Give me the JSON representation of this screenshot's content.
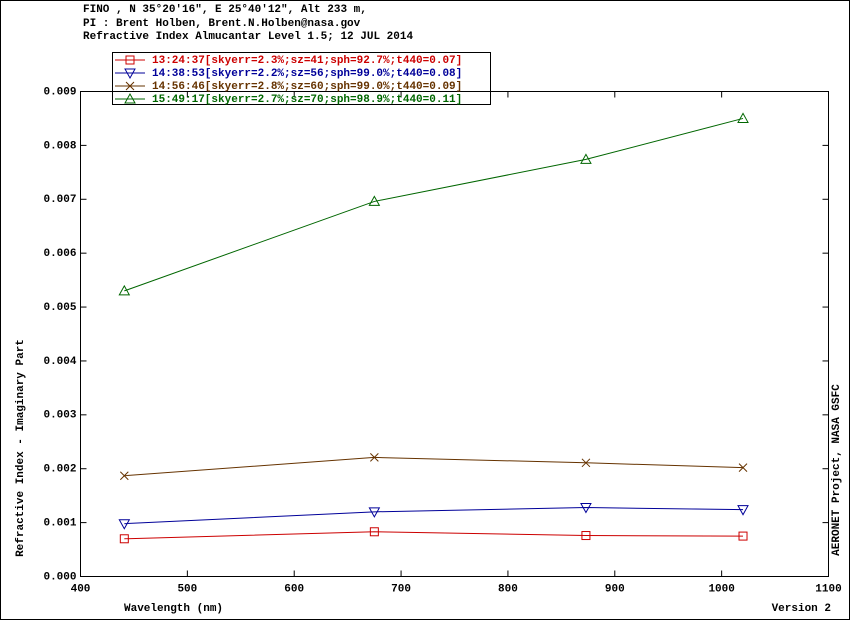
{
  "chart_data": {
    "type": "line",
    "title_lines": [
      "FINO , N 35°20'16\", E 25°40'12\", Alt 233 m,",
      "PI : Brent Holben, Brent.N.Holben@nasa.gov",
      "Refractive Index Almucantar Level 1.5; 12 JUL 2014"
    ],
    "y_label": "Refractive Index - Imaginary Part",
    "x_label": "Wavelength (nm)",
    "right_label": "AERONET Project, NASA GSFC",
    "version": "Version 2",
    "x": [
      441,
      675,
      873,
      1020
    ],
    "series": [
      {
        "name": "13:24:37[skyerr=2.3%;sz=41;sph=92.7%;t440=0.07]",
        "color": "#cc0000",
        "marker": "square",
        "values": [
          0.0007,
          0.00083,
          0.00076,
          0.00075
        ]
      },
      {
        "name": "14:38:53[skyerr=2.2%;sz=56;sph=99.0%;t440=0.08]",
        "color": "#000099",
        "marker": "down-triangle",
        "values": [
          0.00098,
          0.0012,
          0.00128,
          0.00124
        ]
      },
      {
        "name": "14:56:46[skyerr=2.8%;sz=60;sph=99.0%;t440=0.09]",
        "color": "#663300",
        "marker": "cross",
        "values": [
          0.00187,
          0.00221,
          0.00211,
          0.00202
        ]
      },
      {
        "name": "15:49:17[skyerr=2.7%;sz=70;sph=98.9%;t440=0.11]",
        "color": "#006600",
        "marker": "up-triangle",
        "values": [
          0.0053,
          0.00696,
          0.00774,
          0.0085
        ]
      }
    ],
    "xlim": [
      400,
      1100
    ],
    "xticks": [
      400,
      500,
      600,
      700,
      800,
      900,
      1000,
      1100
    ],
    "ylim": [
      0,
      0.009
    ],
    "yticks": [
      {
        "value": 0,
        "label": "0.000"
      },
      {
        "value": 0.001,
        "label": "0.001"
      },
      {
        "value": 0.002,
        "label": "0.002"
      },
      {
        "value": 0.003,
        "label": "0.003"
      },
      {
        "value": 0.004,
        "label": "0.004"
      },
      {
        "value": 0.005,
        "label": "0.005"
      },
      {
        "value": 0.006,
        "label": "0.006"
      },
      {
        "value": 0.007,
        "label": "0.007"
      },
      {
        "value": 0.008,
        "label": "0.008"
      },
      {
        "value": 0.009,
        "label": "0.009"
      }
    ]
  }
}
